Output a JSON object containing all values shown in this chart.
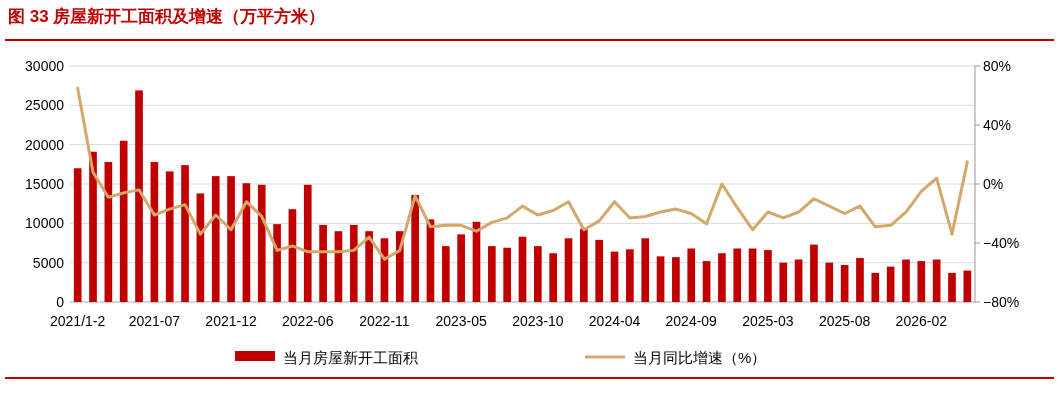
{
  "chart_data": {
    "type": "bar",
    "title": "图 33 房屋新开工面积及增速（万平方米）",
    "categories": [
      "2021/1-2",
      null,
      null,
      null,
      null,
      "2021-07",
      null,
      null,
      null,
      null,
      "2021-12",
      null,
      null,
      null,
      null,
      "2022-06",
      null,
      null,
      null,
      null,
      "2022-11",
      null,
      null,
      null,
      null,
      "2023-05",
      null,
      null,
      null,
      null,
      "2023-10",
      null,
      null,
      null,
      null,
      "2024-04",
      null,
      null,
      null,
      null,
      "2024-09",
      null,
      null,
      null,
      null,
      "2025-03",
      null,
      null,
      null,
      null,
      "2025-08",
      null,
      null,
      null,
      null,
      "2026-02",
      null,
      null,
      null
    ],
    "series": [
      {
        "name": "当月房屋新开工面积",
        "color": "#c00000",
        "values": [
          17000,
          19100,
          17800,
          20500,
          26900,
          17800,
          16600,
          17400,
          13800,
          16000,
          16000,
          15100,
          14900,
          9900,
          11800,
          14900,
          9800,
          9000,
          9800,
          9000,
          8100,
          9000,
          13600,
          10500,
          7100,
          8600,
          10200,
          7100,
          6900,
          8300,
          7100,
          6200,
          8100,
          9300,
          7900,
          6400,
          6700,
          8100,
          5800,
          5700,
          6800,
          5200,
          6200,
          6800,
          6800,
          6600,
          5000,
          5400,
          7300,
          5000,
          4700,
          5600,
          3700,
          4500,
          5400,
          5200,
          5400,
          3700,
          4000
        ]
      },
      {
        "name": "当月同比增速（%）",
        "type": "line",
        "axis": "y2",
        "color": "#d4a76a",
        "values": [
          65,
          8,
          -9,
          -6,
          -4,
          -21,
          -17,
          -14,
          -34,
          -21,
          -31,
          -12,
          -22,
          -45,
          -42,
          -46,
          -46,
          -46,
          -45,
          -36,
          -51,
          -45,
          -8,
          -29,
          -28,
          -28,
          -32,
          -26,
          -23,
          -15,
          -21,
          -18,
          -12,
          -31,
          -25,
          -12,
          -23,
          -22,
          -19,
          -17,
          -20,
          -27,
          0,
          -16,
          -31,
          -19,
          -23,
          -19,
          -10,
          -15,
          -20,
          -15,
          -29,
          -28,
          -19,
          -5,
          4,
          -34,
          15
        ]
      }
    ],
    "ylim": [
      0,
      30000
    ],
    "yticks": [
      0,
      5000,
      10000,
      15000,
      20000,
      25000,
      30000
    ],
    "y2lim": [
      -80,
      80
    ],
    "y2ticks": [
      {
        "value": -80,
        "label": "−80%"
      },
      {
        "value": -40,
        "label": "−40%"
      },
      {
        "value": 0,
        "label": "0%"
      },
      {
        "value": 40,
        "label": "40%"
      },
      {
        "value": 80,
        "label": "80%"
      }
    ],
    "grid": "y",
    "legend": "bottom"
  }
}
